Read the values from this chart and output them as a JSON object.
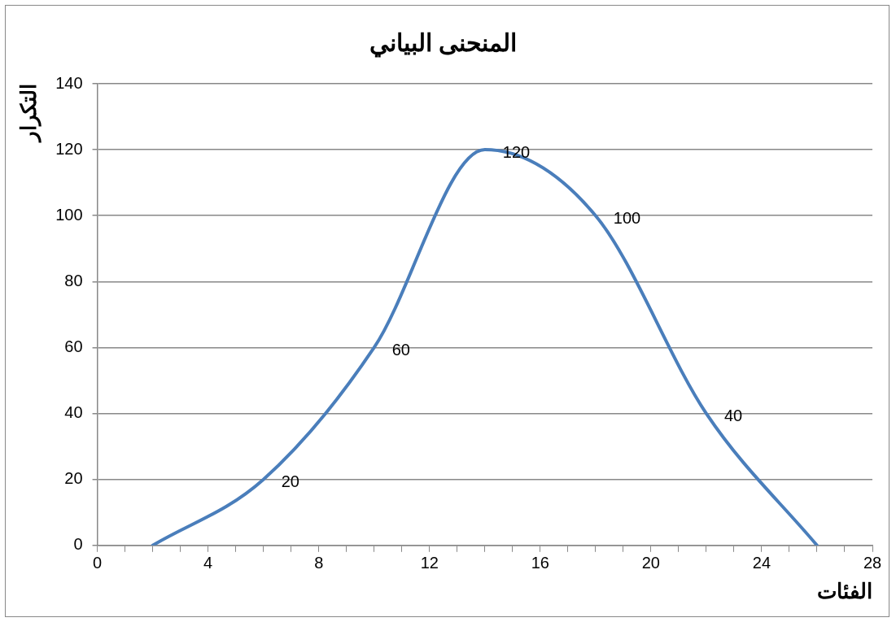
{
  "chart_data": {
    "type": "line",
    "title": "المنحنى البياني",
    "xlabel": "الفئات",
    "ylabel": "التكرار",
    "x": [
      2,
      6,
      10,
      14,
      18,
      22,
      26
    ],
    "series": [
      {
        "color": "#4a7ebb",
        "values": [
          0,
          20,
          60,
          120,
          100,
          40,
          0
        ],
        "value_labels": [
          null,
          "20",
          "60",
          "120",
          "100",
          "40",
          null
        ]
      }
    ],
    "xlim": [
      0,
      28
    ],
    "xticks": [
      0,
      {
        "value": 1,
        "label": null
      },
      {
        "value": 2,
        "label": null
      },
      {
        "value": 3,
        "label": null
      },
      4,
      {
        "value": 5,
        "label": null
      },
      {
        "value": 6,
        "label": null
      },
      {
        "value": 7,
        "label": null
      },
      8,
      {
        "value": 9,
        "label": null
      },
      {
        "value": 10,
        "label": null
      },
      {
        "value": 11,
        "label": null
      },
      12,
      {
        "value": 13,
        "label": null
      },
      {
        "value": 14,
        "label": null
      },
      {
        "value": 15,
        "label": null
      },
      16,
      {
        "value": 17,
        "label": null
      },
      {
        "value": 18,
        "label": null
      },
      {
        "value": 19,
        "label": null
      },
      20,
      {
        "value": 21,
        "label": null
      },
      {
        "value": 22,
        "label": null
      },
      {
        "value": 23,
        "label": null
      },
      24,
      {
        "value": 25,
        "label": null
      },
      {
        "value": 26,
        "label": null
      },
      {
        "value": 27,
        "label": null
      },
      28
    ],
    "ylim": [
      0,
      140
    ],
    "yticks": [
      0,
      20,
      40,
      60,
      80,
      100,
      120,
      140
    ],
    "grid": "y",
    "legend": false,
    "marker": "none",
    "line_style": "solid"
  }
}
